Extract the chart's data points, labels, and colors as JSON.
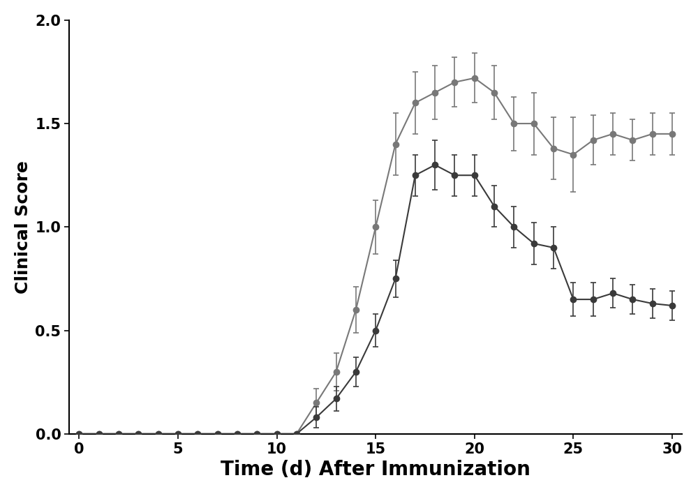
{
  "title": "",
  "xlabel": "Time (d) After Immunization",
  "ylabel": "Clinical Score",
  "xlim": [
    -0.5,
    30.5
  ],
  "ylim": [
    0.0,
    2.0
  ],
  "xticks": [
    0,
    5,
    10,
    15,
    20,
    25,
    30
  ],
  "yticks": [
    0.0,
    0.5,
    1.0,
    1.5,
    2.0
  ],
  "series1": {
    "color": "#3a3a3a",
    "marker": "o",
    "markersize": 6,
    "linewidth": 1.5,
    "x": [
      0,
      1,
      2,
      3,
      4,
      5,
      6,
      7,
      8,
      9,
      10,
      11,
      12,
      13,
      14,
      15,
      16,
      17,
      18,
      19,
      20,
      21,
      22,
      23,
      24,
      25,
      26,
      27,
      28,
      29,
      30
    ],
    "y": [
      0.0,
      0.0,
      0.0,
      0.0,
      0.0,
      0.0,
      0.0,
      0.0,
      0.0,
      0.0,
      0.0,
      0.0,
      0.08,
      0.17,
      0.3,
      0.5,
      0.75,
      1.25,
      1.3,
      1.25,
      1.25,
      1.1,
      1.0,
      0.92,
      0.9,
      0.65,
      0.65,
      0.68,
      0.65,
      0.63,
      0.62
    ],
    "yerr": [
      0.0,
      0.0,
      0.0,
      0.0,
      0.0,
      0.0,
      0.0,
      0.0,
      0.0,
      0.0,
      0.0,
      0.0,
      0.05,
      0.06,
      0.07,
      0.08,
      0.09,
      0.1,
      0.12,
      0.1,
      0.1,
      0.1,
      0.1,
      0.1,
      0.1,
      0.08,
      0.08,
      0.07,
      0.07,
      0.07,
      0.07
    ]
  },
  "series2": {
    "color": "#787878",
    "marker": "o",
    "markersize": 6,
    "linewidth": 1.5,
    "x": [
      0,
      1,
      2,
      3,
      4,
      5,
      6,
      7,
      8,
      9,
      10,
      11,
      12,
      13,
      14,
      15,
      16,
      17,
      18,
      19,
      20,
      21,
      22,
      23,
      24,
      25,
      26,
      27,
      28,
      29,
      30
    ],
    "y": [
      0.0,
      0.0,
      0.0,
      0.0,
      0.0,
      0.0,
      0.0,
      0.0,
      0.0,
      0.0,
      0.0,
      0.0,
      0.15,
      0.3,
      0.6,
      1.0,
      1.4,
      1.6,
      1.65,
      1.7,
      1.72,
      1.65,
      1.5,
      1.5,
      1.38,
      1.35,
      1.42,
      1.45,
      1.42,
      1.45,
      1.45
    ],
    "yerr": [
      0.0,
      0.0,
      0.0,
      0.0,
      0.0,
      0.0,
      0.0,
      0.0,
      0.0,
      0.0,
      0.0,
      0.0,
      0.07,
      0.09,
      0.11,
      0.13,
      0.15,
      0.15,
      0.13,
      0.12,
      0.12,
      0.13,
      0.13,
      0.15,
      0.15,
      0.18,
      0.12,
      0.1,
      0.1,
      0.1,
      0.1
    ]
  },
  "xlabel_fontsize": 20,
  "ylabel_fontsize": 18,
  "tick_fontsize": 15,
  "xlabel_fontweight": "bold",
  "ylabel_fontweight": "bold",
  "tick_fontweight": "bold"
}
